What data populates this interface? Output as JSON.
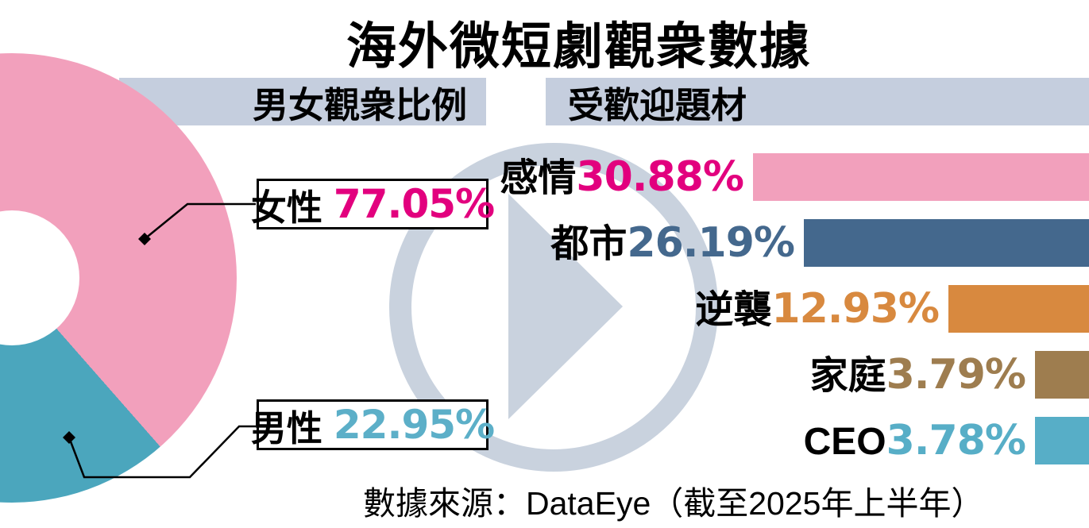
{
  "title": "海外微短劇觀衆數據",
  "sections": {
    "gender": {
      "header": "男女觀衆比例"
    },
    "genres": {
      "header": "受歡迎題材"
    }
  },
  "source_note": "數據來源：DataEye（截至2025年上半年）",
  "watermark": {
    "icon": "play-icon",
    "color": "#C9D2DE"
  },
  "colors": {
    "header_bg": "#C5CEDE",
    "female_pink": "#F2A0BC",
    "male_teal": "#4BA6BD",
    "magenta_text": "#E2007E",
    "teal_text": "#5CAFC8"
  },
  "chart_data": [
    {
      "type": "pie",
      "title": "男女觀衆比例",
      "donut": true,
      "categories": [
        "女性",
        "男性"
      ],
      "values": [
        77.05,
        22.95
      ],
      "labels": [
        {
          "name": "女性",
          "value_display": "77.05%",
          "value_color": "#E2007E",
          "slice_color": "#F2A0BC"
        },
        {
          "name": "男性",
          "value_display": "22.95%",
          "value_color": "#5CAFC8",
          "slice_color": "#4BA6BD"
        }
      ]
    },
    {
      "type": "bar",
      "title": "受歡迎題材",
      "orientation": "horizontal",
      "categories": [
        "感情",
        "都市",
        "逆襲",
        "家庭",
        "CEO"
      ],
      "values": [
        30.88,
        26.19,
        12.93,
        3.79,
        3.78
      ],
      "value_displays": [
        "30.88%",
        "26.19%",
        "12.93%",
        "3.79%",
        "3.78%"
      ],
      "bar_colors": [
        "#F2A0BC",
        "#44688D",
        "#D8893F",
        "#9E7D4F",
        "#57AEC7"
      ],
      "text_colors": [
        "#E2007E",
        "#44688D",
        "#D8893F",
        "#9E7D4F",
        "#57AEC7"
      ],
      "xlim": [
        0,
        31
      ]
    }
  ]
}
